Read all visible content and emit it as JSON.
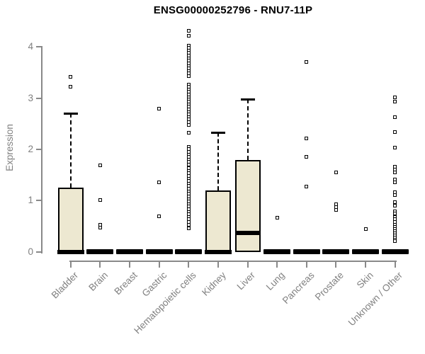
{
  "chart_data": {
    "type": "boxplot",
    "title": "ENSG00000252796 - RNU7-11P",
    "ylabel": "Expression",
    "xlabel": "",
    "ylim": [
      0,
      4
    ],
    "yticks": [
      0,
      1,
      2,
      3,
      4
    ],
    "grid": false,
    "legend": "none",
    "x_label_rotation_deg": 45,
    "colors": {
      "box_fill": "#EDE8D1",
      "box_stroke": "#000000",
      "axis": "#898989",
      "tick_text": "#808080",
      "title_text": "#000000"
    },
    "categories": [
      "Bladder",
      "Brain",
      "Breast",
      "Gastric",
      "Hematopoietic cells",
      "Kidney",
      "Liver",
      "Lung",
      "Pancreas",
      "Prostate",
      "Skin",
      "Unknown / Other"
    ],
    "series": [
      {
        "category": "Bladder",
        "q1": 0,
        "median": 0,
        "q3": 1.25,
        "whisker_low": 0,
        "whisker_high": 2.7,
        "outliers": [
          3.42,
          3.22
        ]
      },
      {
        "category": "Brain",
        "q1": 0,
        "median": 0,
        "q3": 0,
        "whisker_low": 0,
        "whisker_high": 0,
        "outliers": [
          1.69,
          1.01,
          0.52,
          0.47
        ]
      },
      {
        "category": "Breast",
        "q1": 0,
        "median": 0,
        "q3": 0,
        "whisker_low": 0,
        "whisker_high": 0,
        "outliers": []
      },
      {
        "category": "Gastric",
        "q1": 0,
        "median": 0,
        "q3": 0,
        "whisker_low": 0,
        "whisker_high": 0,
        "outliers": [
          2.8,
          1.36,
          0.69
        ]
      },
      {
        "category": "Hematopoietic cells",
        "q1": 0,
        "median": 0,
        "q3": 0,
        "whisker_low": 0,
        "whisker_high": 0,
        "outliers": [
          4.31,
          4.22,
          4.03,
          3.98,
          3.93,
          3.88,
          3.83,
          3.78,
          3.73,
          3.68,
          3.63,
          3.58,
          3.53,
          3.48,
          3.43,
          3.27,
          3.22,
          3.17,
          3.12,
          3.07,
          3.02,
          2.97,
          2.93,
          2.88,
          2.83,
          2.78,
          2.73,
          2.68,
          2.63,
          2.58,
          2.53,
          2.48,
          2.33,
          2.05,
          2.0,
          1.95,
          1.9,
          1.85,
          1.8,
          1.75,
          1.7,
          1.63,
          1.58,
          1.53,
          1.48,
          1.43,
          1.38,
          1.33,
          1.28,
          1.23,
          1.18,
          1.13,
          1.08,
          1.03,
          0.98,
          0.93,
          0.88,
          0.83,
          0.78,
          0.73,
          0.68,
          0.63,
          0.58,
          0.52,
          0.46
        ]
      },
      {
        "category": "Kidney",
        "q1": 0,
        "median": 0,
        "q3": 1.19,
        "whisker_low": 0,
        "whisker_high": 2.33,
        "outliers": []
      },
      {
        "category": "Liver",
        "q1": 0.02,
        "median": 0.37,
        "q3": 1.79,
        "whisker_low": 0.02,
        "whisker_high": 2.98,
        "outliers": []
      },
      {
        "category": "Lung",
        "q1": 0,
        "median": 0,
        "q3": 0,
        "whisker_low": 0,
        "whisker_high": 0,
        "outliers": [
          0.66
        ]
      },
      {
        "category": "Pancreas",
        "q1": 0,
        "median": 0,
        "q3": 0,
        "whisker_low": 0,
        "whisker_high": 0,
        "outliers": [
          3.71,
          2.21,
          1.86,
          1.27
        ]
      },
      {
        "category": "Prostate",
        "q1": 0,
        "median": 0,
        "q3": 0,
        "whisker_low": 0,
        "whisker_high": 0,
        "outliers": [
          1.55,
          0.93,
          0.87,
          0.81
        ]
      },
      {
        "category": "Skin",
        "q1": 0,
        "median": 0,
        "q3": 0,
        "whisker_low": 0,
        "whisker_high": 0,
        "outliers": [
          0.44
        ]
      },
      {
        "category": "Unknown / Other",
        "q1": 0,
        "median": 0,
        "q3": 0,
        "whisker_low": 0,
        "whisker_high": 0,
        "outliers": [
          3.02,
          2.93,
          2.63,
          2.34,
          2.03,
          1.66,
          1.6,
          1.55,
          1.41,
          1.35,
          1.16,
          1.1,
          0.97,
          0.9,
          0.79,
          0.74,
          0.68,
          0.63,
          0.58,
          0.53,
          0.48,
          0.44,
          0.4,
          0.36,
          0.32,
          0.28,
          0.24,
          0.21
        ]
      }
    ]
  }
}
